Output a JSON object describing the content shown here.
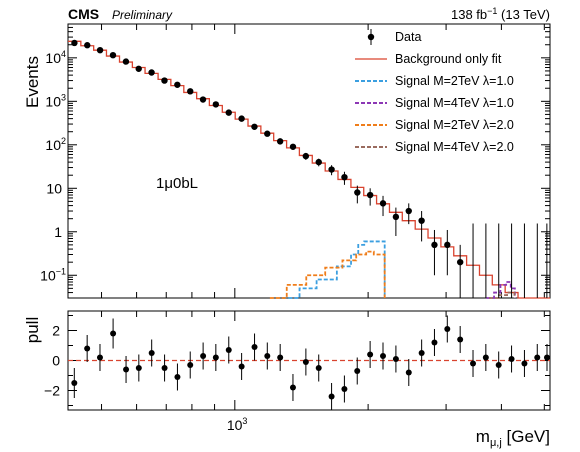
{
  "header": {
    "experiment": "CMS",
    "status": "Preliminary",
    "luminosity": "138 fb",
    "lumi_exponent": "−1",
    "energy": "(13 TeV)"
  },
  "chart_data": [
    {
      "panel": "main",
      "type": "line",
      "ylabel": "Events",
      "xscale": "log",
      "yscale": "log",
      "xlim": [
        420,
        5150
      ],
      "ylim": [
        0.03,
        60000
      ],
      "yticks": [
        {
          "value": 0.1,
          "base": "10",
          "exp": "−1"
        },
        {
          "value": 1,
          "label": "1"
        },
        {
          "value": 10,
          "label": "10"
        },
        {
          "value": 100,
          "base": "10",
          "exp": "2"
        },
        {
          "value": 1000,
          "base": "10",
          "exp": "3"
        },
        {
          "value": 10000,
          "base": "10",
          "exp": "4"
        }
      ],
      "annotation": "1μ0bL",
      "legend_position": "top-right",
      "legend": [
        {
          "label": "Data",
          "style": "marker",
          "color": "#000000"
        },
        {
          "label": "Background only fit",
          "style": "solid",
          "color": "#d9432f"
        },
        {
          "label": "Signal M=2TeV λ=1.0",
          "style": "dashed",
          "color": "#3b9fe0"
        },
        {
          "label": "Signal M=4TeV λ=1.0",
          "style": "dashed",
          "color": "#8c37b5"
        },
        {
          "label": "Signal M=2TeV λ=2.0",
          "style": "dashed",
          "color": "#ef7d1a"
        },
        {
          "label": "Signal M=4TeV λ=2.0",
          "style": "dashed",
          "color": "#9a6b5e"
        }
      ],
      "bin_edges": [
        420,
        449,
        480,
        513,
        549,
        587,
        627,
        671,
        717,
        767,
        820,
        876,
        937,
        1002,
        1071,
        1145,
        1224,
        1309,
        1399,
        1496,
        1600,
        1710,
        1829,
        1955,
        2090,
        2235,
        2389,
        2555,
        2731,
        2920,
        3122,
        3338,
        3569,
        3815,
        4079,
        4361,
        4662,
        4985,
        5150
      ],
      "background": [
        24000,
        19000,
        15000,
        11000,
        8000,
        6000,
        4400,
        3200,
        2300,
        1600,
        1150,
        800,
        560,
        390,
        270,
        185,
        125,
        85,
        57,
        38,
        25,
        16,
        10.5,
        6.8,
        4.4,
        2.8,
        1.8,
        1.15,
        0.72,
        0.45,
        0.28,
        0.17,
        0.1,
        0.06,
        0.04,
        0.03,
        0.03,
        0.03
      ],
      "data": {
        "values": [
          22000,
          19500,
          15000,
          11500,
          8200,
          5600,
          4600,
          3000,
          2400,
          1700,
          1100,
          850,
          550,
          400,
          260,
          180,
          120,
          90,
          55,
          40,
          27,
          18,
          8,
          7,
          4.5,
          2.2,
          3,
          1.8,
          0.5,
          0.5,
          0.2,
          0.05,
          0.05,
          0.05,
          0.05,
          0.05,
          0.05,
          0.05
        ],
        "errors_low": [
          300,
          260,
          230,
          200,
          170,
          140,
          120,
          100,
          90,
          80,
          60,
          50,
          40,
          32,
          25,
          20,
          16,
          13,
          10,
          8,
          7,
          6,
          3.5,
          3,
          2.2,
          1.4,
          1.5,
          1.2,
          0.4,
          0.4,
          0.17,
          0.05,
          0.05,
          0.05,
          0.05,
          0.05,
          0.05,
          0.05
        ],
        "errors_high": [
          300,
          260,
          230,
          200,
          170,
          140,
          120,
          100,
          90,
          80,
          60,
          50,
          40,
          32,
          25,
          20,
          16,
          13,
          10,
          8,
          7,
          6,
          3.5,
          3,
          2.2,
          1.4,
          1.5,
          1.2,
          0.6,
          0.6,
          0.3,
          1.5,
          1.5,
          1.5,
          1.5,
          1.5,
          1.5,
          1.5
        ]
      },
      "signals": [
        {
          "name": "Signal M=2TeV λ=1.0",
          "color": "#3b9fe0",
          "x": [
            1280,
            1400,
            1530,
            1700,
            1830,
            1900,
            1960,
            2050,
            2180
          ],
          "y": [
            0.03,
            0.05,
            0.08,
            0.16,
            0.3,
            0.5,
            0.6,
            0.6,
            0.03
          ]
        },
        {
          "name": "Signal M=2TeV λ=2.0",
          "color": "#ef7d1a",
          "x": [
            1200,
            1310,
            1450,
            1600,
            1750,
            1880,
            1980,
            2060,
            2180
          ],
          "y": [
            0.03,
            0.06,
            0.1,
            0.15,
            0.22,
            0.3,
            0.35,
            0.3,
            0.03
          ]
        },
        {
          "name": "Signal M=4TeV λ=1.0",
          "color": "#8c37b5",
          "x": [
            3700,
            3850,
            3980,
            4100,
            4200,
            4290
          ],
          "y": [
            0.03,
            0.04,
            0.06,
            0.07,
            0.05,
            0.03
          ]
        },
        {
          "name": "Signal M=4TeV λ=2.0",
          "color": "#9a6b5e",
          "x": [
            3750,
            3950,
            4120,
            4280
          ],
          "y": [
            0.03,
            0.035,
            0.04,
            0.03
          ]
        }
      ]
    },
    {
      "panel": "ratio",
      "type": "scatter",
      "ylabel": "pull",
      "xlabel_base": "m",
      "xlabel_sub": "μ,j",
      "xlabel_unit": "[GeV]",
      "xtick_base": "10",
      "xtick_exp": "3",
      "xscale": "log",
      "xlim": [
        420,
        5150
      ],
      "ylim": [
        -3.3,
        3.3
      ],
      "yticks": [
        -2,
        0,
        2
      ],
      "reference_line": 0,
      "x": [
        434,
        464,
        496,
        531,
        568,
        607,
        649,
        694,
        742,
        793,
        848,
        906,
        969,
        1036,
        1108,
        1184,
        1266,
        1353,
        1447,
        1547,
        1654,
        1768,
        1890,
        2021,
        2161,
        2311,
        2471,
        2642,
        2824,
        3019,
        3228,
        3451,
        3689,
        3944,
        4217,
        4509,
        4820,
        5070
      ],
      "values": [
        -1.5,
        0.8,
        0.2,
        1.8,
        -0.6,
        -0.5,
        0.5,
        -0.5,
        -1.1,
        -0.3,
        0.3,
        0.2,
        0.7,
        -0.4,
        0.9,
        0.3,
        0.2,
        -1.8,
        -0.1,
        -0.5,
        -2.4,
        -1.9,
        -0.7,
        0.4,
        0.3,
        0.1,
        -0.8,
        0.5,
        1.2,
        2.1,
        1.4,
        -0.2,
        0.2,
        -0.3,
        0.1,
        -0.2,
        0.2,
        0.2
      ],
      "errors": [
        1.0,
        0.9,
        0.9,
        1.0,
        0.9,
        0.9,
        0.9,
        0.9,
        0.9,
        0.9,
        0.9,
        0.9,
        0.9,
        0.9,
        0.9,
        0.9,
        0.9,
        0.9,
        0.9,
        0.9,
        0.9,
        0.9,
        0.9,
        0.9,
        0.9,
        0.9,
        0.9,
        0.9,
        0.9,
        0.9,
        0.9,
        0.9,
        0.9,
        0.9,
        0.9,
        0.9,
        0.9,
        0.9
      ]
    }
  ]
}
